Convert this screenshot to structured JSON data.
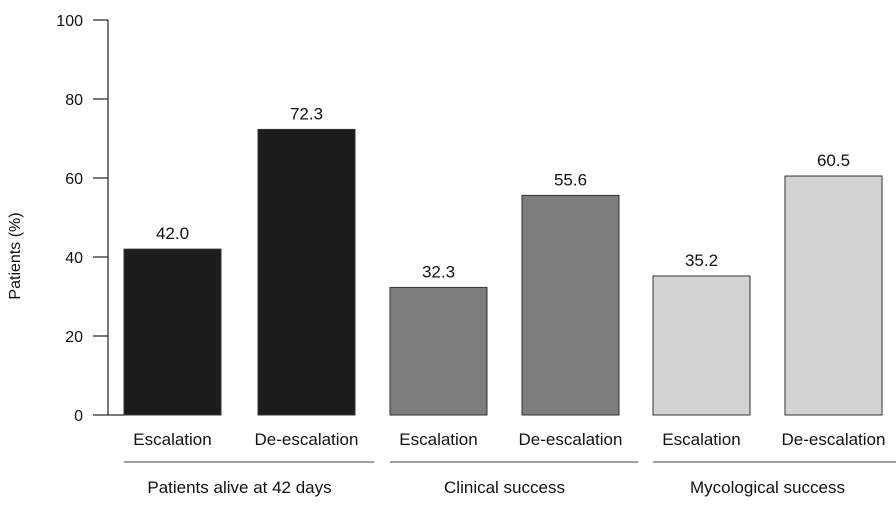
{
  "chart_data": {
    "type": "bar",
    "title": "",
    "ylabel": "Patients (%)",
    "ylim": [
      0,
      100
    ],
    "yticks": [
      0,
      20,
      40,
      60,
      80,
      100
    ],
    "grid": false,
    "groups": [
      {
        "label": "Patients alive at 42 days",
        "color": "#1c1c1c",
        "bars": [
          {
            "category": "Escalation",
            "value": 42.0,
            "label": "42.0"
          },
          {
            "category": "De-escalation",
            "value": 72.3,
            "label": "72.3"
          }
        ]
      },
      {
        "label": "Clinical success",
        "color": "#7d7d7d",
        "bars": [
          {
            "category": "Escalation",
            "value": 32.3,
            "label": "32.3"
          },
          {
            "category": "De-escalation",
            "value": 55.6,
            "label": "55.6"
          }
        ]
      },
      {
        "label": "Mycological success",
        "color": "#d3d3d3",
        "bars": [
          {
            "category": "Escalation",
            "value": 35.2,
            "label": "35.2"
          },
          {
            "category": "De-escalation",
            "value": 60.5,
            "label": "60.5"
          }
        ]
      }
    ]
  }
}
